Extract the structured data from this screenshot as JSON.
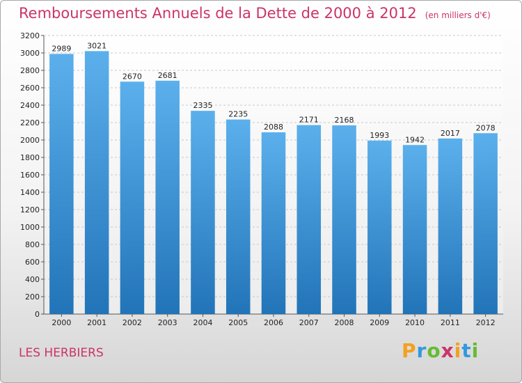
{
  "title": "Remboursements Annuels de la Dette de 2000 à 2012",
  "subtitle": "(en milliers d'€)",
  "location": "LES HERBIERS",
  "logo": {
    "letters": [
      "P",
      "r",
      "o",
      "x",
      "i",
      "t",
      "i"
    ],
    "colors": [
      "#f4a020",
      "#3399dd",
      "#66bb33",
      "#cc3366",
      "#f4a020",
      "#3399dd",
      "#66bb33"
    ]
  },
  "colors": {
    "bar_top": "#5bb0ec",
    "bar_bottom": "#2274b8",
    "accent": "#cc3366"
  },
  "chart_data": {
    "type": "bar",
    "title": "Remboursements Annuels de la Dette de 2000 à 2012",
    "subtitle": "(en milliers d'€)",
    "categories": [
      "2000",
      "2001",
      "2002",
      "2003",
      "2004",
      "2005",
      "2006",
      "2007",
      "2008",
      "2009",
      "2010",
      "2011",
      "2012"
    ],
    "values": [
      2989,
      3021,
      2670,
      2681,
      2335,
      2235,
      2088,
      2171,
      2168,
      1993,
      1942,
      2017,
      2078
    ],
    "ylim": [
      0,
      3200
    ],
    "yticks": [
      0,
      200,
      400,
      600,
      800,
      1000,
      1200,
      1400,
      1600,
      1800,
      2000,
      2200,
      2400,
      2600,
      2800,
      3000,
      3200
    ],
    "grid": true,
    "xlabel": "",
    "ylabel": ""
  }
}
